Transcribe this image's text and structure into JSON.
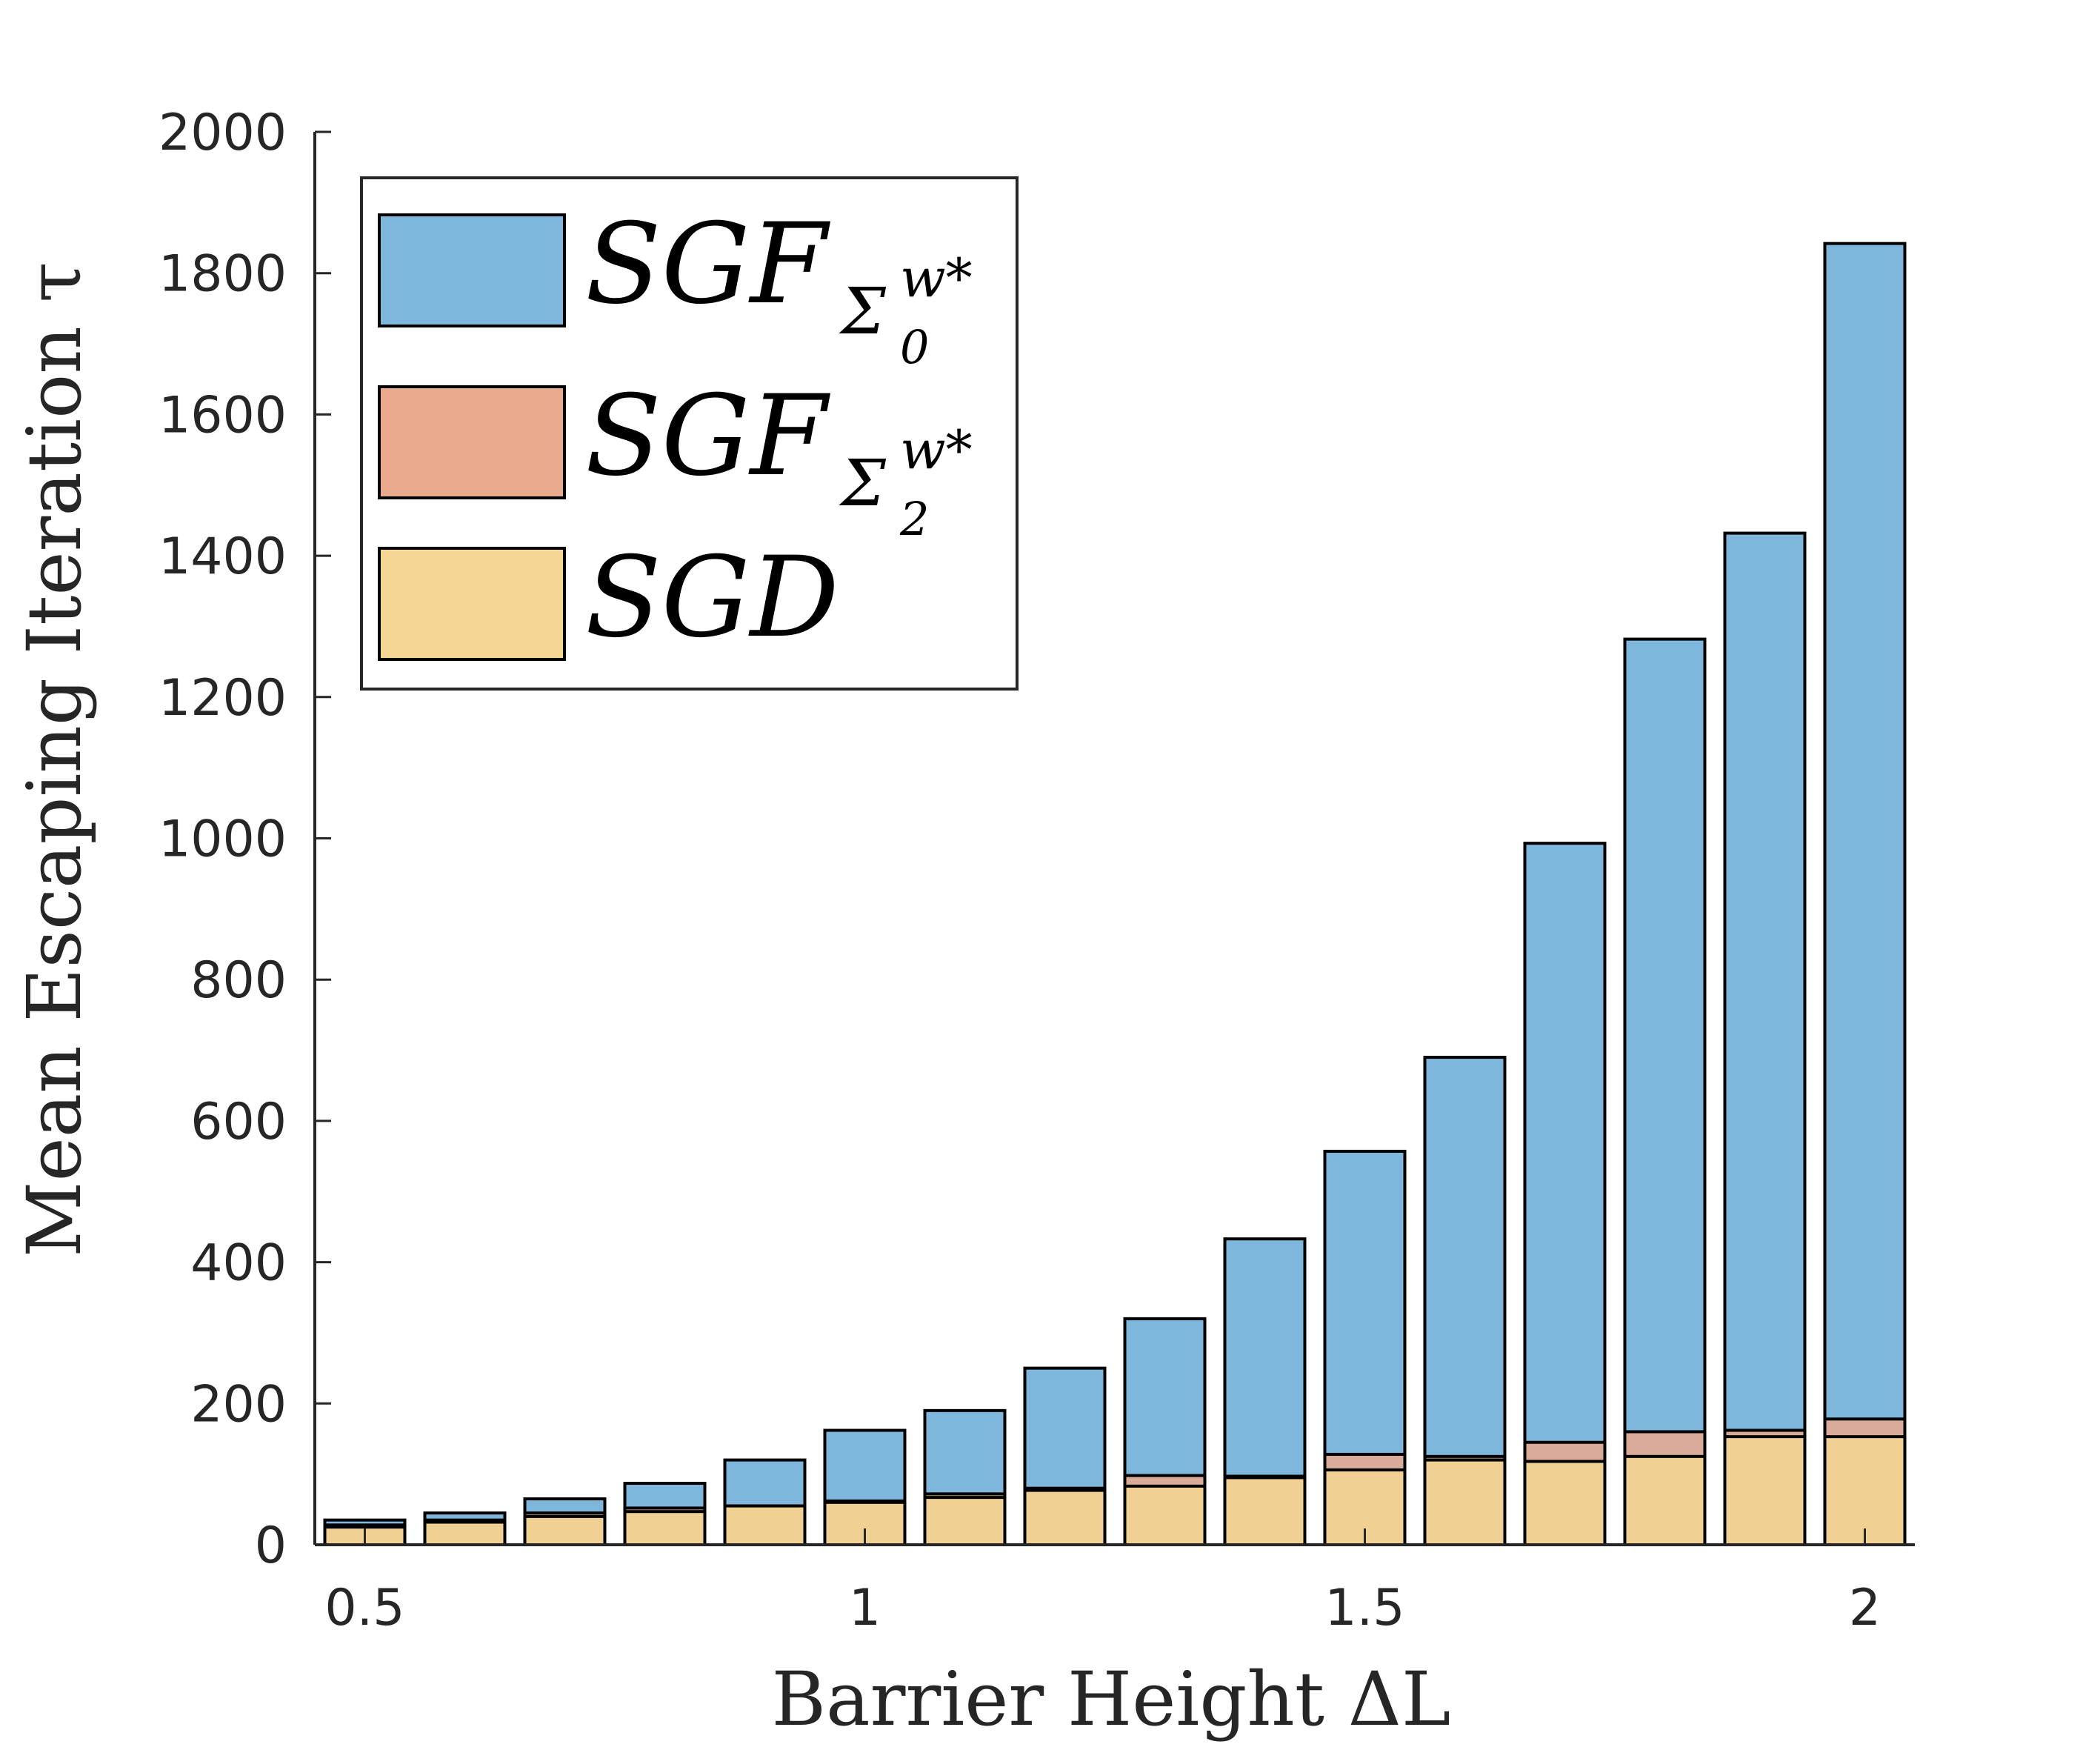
{
  "chart_data": {
    "type": "bar",
    "x": [
      0.5,
      0.6,
      0.7,
      0.8,
      0.9,
      1.0,
      1.1,
      1.2,
      1.3,
      1.4,
      1.5,
      1.6,
      1.7,
      1.8,
      1.9,
      2.0
    ],
    "series": [
      {
        "name": "SGF_{Σ_0^{w*}}",
        "color": "#7EB6DC",
        "values": [
          35,
          45,
          65,
          87,
          120,
          162,
          190,
          250,
          320,
          433,
          557,
          690,
          993,
          1282,
          1432,
          1842
        ]
      },
      {
        "name": "SGF_{Σ_2^{w*}}",
        "color": "#E9A98C",
        "values": [
          28,
          35,
          45,
          52,
          55,
          62,
          72,
          80,
          98,
          97,
          128,
          125,
          145,
          160,
          162,
          178
        ]
      },
      {
        "name": "SGD",
        "color": "#F4D792",
        "values": [
          25,
          32,
          40,
          47,
          55,
          60,
          67,
          77,
          83,
          95,
          106,
          120,
          118,
          125,
          153,
          153
        ]
      }
    ],
    "xlabel": "Barrier Height ΔL",
    "ylabel": "Mean Escaping Iteration τ",
    "xlim": [
      0.45,
      2.05
    ],
    "ylim": [
      0,
      2000
    ],
    "xticks": [
      "0.5",
      "1",
      "1.5",
      "2"
    ],
    "yticks": [
      "0",
      "200",
      "400",
      "600",
      "800",
      "1000",
      "1200",
      "1400",
      "1600",
      "1800",
      "2000"
    ],
    "legend_position": "top-left",
    "legend": {
      "entries": [
        {
          "base": "SGF",
          "sub": "Σ",
          "sub_index": "0",
          "sup": "w*"
        },
        {
          "base": "SGF",
          "sub": "Σ",
          "sub_index": "2",
          "sup": "w*"
        },
        {
          "base": "SGD",
          "sub": "",
          "sub_index": "",
          "sup": ""
        }
      ]
    },
    "grid": false
  }
}
